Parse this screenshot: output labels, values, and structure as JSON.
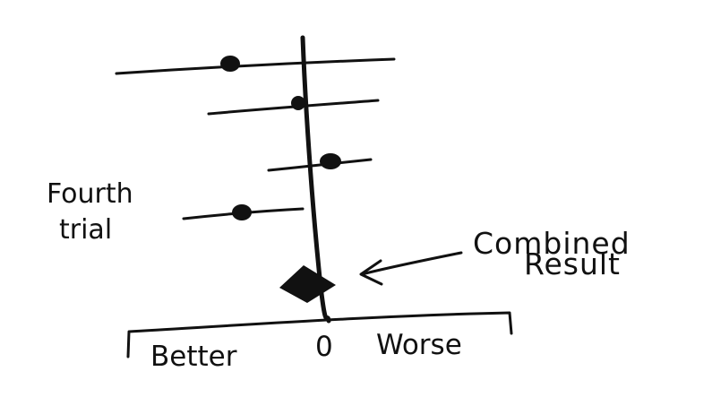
{
  "labels": {
    "fourth_line1": "Fourth",
    "fourth_line2": "trial",
    "combined_line1": "Combined",
    "combined_line2": "Result",
    "axis_better": "Better",
    "axis_zero": "0",
    "axis_worse": "Worse"
  },
  "colors": {
    "ink": "#111111",
    "background": "#ffffff"
  }
}
